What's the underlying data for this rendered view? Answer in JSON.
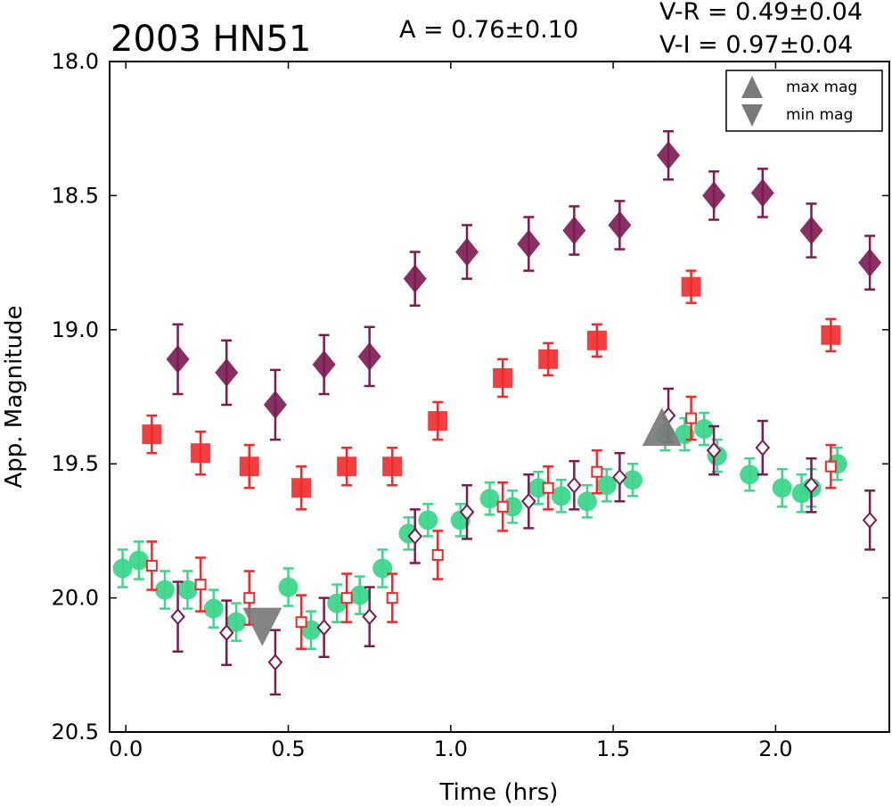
{
  "chart_data": {
    "type": "scatter",
    "title": "2003 HN51",
    "annotations": {
      "amplitude": "A  = 0.76±0.10",
      "v_r": "V-R = 0.49±0.04",
      "v_i": "V-I  = 0.97±0.04"
    },
    "xlabel": "Time (hrs)",
    "ylabel": "App. Magnitude",
    "xlim": [
      -0.05,
      2.35
    ],
    "ylim": [
      20.5,
      18.0
    ],
    "y_inverted": true,
    "x_ticks": [
      "0.0",
      "0.5",
      "1.0",
      "1.5",
      "2.0"
    ],
    "y_ticks": [
      "18.0",
      "18.5",
      "19.0",
      "19.5",
      "20.0",
      "20.5"
    ],
    "legend": {
      "placement": "top-right",
      "entries": [
        "max mag",
        "min mag"
      ]
    },
    "colors": {
      "green": "#3dd68c",
      "red": "#f02a2a",
      "purple": "#7c1a52",
      "marker_gray": "#7a7a7a"
    },
    "series": [
      {
        "marker": "diamond-filled",
        "color": "#7c1a52",
        "x": [
          0.16,
          0.31,
          0.46,
          0.61,
          0.75,
          0.89,
          1.05,
          1.24,
          1.38,
          1.52,
          1.67,
          1.81,
          1.96,
          2.11,
          2.29
        ],
        "y": [
          19.11,
          19.16,
          19.28,
          19.13,
          19.1,
          18.81,
          18.71,
          18.68,
          18.63,
          18.61,
          18.35,
          18.5,
          18.49,
          18.63,
          18.75
        ],
        "err": [
          0.13,
          0.12,
          0.13,
          0.11,
          0.11,
          0.1,
          0.1,
          0.1,
          0.09,
          0.09,
          0.09,
          0.09,
          0.09,
          0.1,
          0.1
        ]
      },
      {
        "marker": "square-filled",
        "color": "#f02a2a",
        "x": [
          0.08,
          0.23,
          0.38,
          0.54,
          0.68,
          0.82,
          0.96,
          1.16,
          1.3,
          1.45,
          1.74,
          2.17
        ],
        "y": [
          19.39,
          19.46,
          19.51,
          19.59,
          19.51,
          19.51,
          19.34,
          19.18,
          19.11,
          19.04,
          18.84,
          19.02
        ],
        "err": [
          0.07,
          0.08,
          0.08,
          0.08,
          0.07,
          0.07,
          0.07,
          0.07,
          0.06,
          0.06,
          0.06,
          0.06
        ]
      },
      {
        "marker": "circle-filled",
        "color": "#3dd68c",
        "x": [
          -0.01,
          0.04,
          0.12,
          0.19,
          0.27,
          0.34,
          0.5,
          0.57,
          0.65,
          0.72,
          0.79,
          0.87,
          0.93,
          1.03,
          1.12,
          1.19,
          1.27,
          1.34,
          1.42,
          1.48,
          1.56,
          1.66,
          1.72,
          1.78,
          1.82,
          1.92,
          2.02,
          2.08,
          2.11,
          2.19
        ],
        "y": [
          19.89,
          19.86,
          19.97,
          19.97,
          20.04,
          20.09,
          19.96,
          20.12,
          20.02,
          19.99,
          19.89,
          19.76,
          19.71,
          19.71,
          19.63,
          19.66,
          19.59,
          19.62,
          19.64,
          19.58,
          19.56,
          19.39,
          19.39,
          19.37,
          19.47,
          19.54,
          19.59,
          19.61,
          19.59,
          19.5
        ],
        "err": [
          0.07,
          0.07,
          0.07,
          0.07,
          0.07,
          0.07,
          0.07,
          0.07,
          0.07,
          0.07,
          0.07,
          0.06,
          0.06,
          0.06,
          0.06,
          0.06,
          0.06,
          0.06,
          0.06,
          0.06,
          0.06,
          0.06,
          0.06,
          0.06,
          0.06,
          0.06,
          0.07,
          0.07,
          0.07,
          0.06
        ]
      },
      {
        "marker": "square-open",
        "color": "#f02a2a",
        "x": [
          0.08,
          0.23,
          0.38,
          0.54,
          0.68,
          0.82,
          0.96,
          1.16,
          1.3,
          1.45,
          1.74,
          2.17
        ],
        "y": [
          19.88,
          19.95,
          20.0,
          20.09,
          20.0,
          20.0,
          19.84,
          19.66,
          19.59,
          19.53,
          19.33,
          19.51
        ],
        "err": [
          0.09,
          0.1,
          0.1,
          0.1,
          0.09,
          0.09,
          0.09,
          0.09,
          0.08,
          0.08,
          0.08,
          0.08
        ]
      },
      {
        "marker": "diamond-open",
        "color": "#7c1a52",
        "x": [
          0.16,
          0.31,
          0.46,
          0.61,
          0.75,
          0.89,
          1.05,
          1.24,
          1.38,
          1.52,
          1.67,
          1.81,
          1.96,
          2.11,
          2.29
        ],
        "y": [
          20.07,
          20.13,
          20.24,
          20.11,
          20.07,
          19.77,
          19.68,
          19.64,
          19.58,
          19.55,
          19.32,
          19.45,
          19.44,
          19.58,
          19.71
        ],
        "err": [
          0.13,
          0.12,
          0.12,
          0.11,
          0.11,
          0.1,
          0.1,
          0.1,
          0.09,
          0.09,
          0.1,
          0.09,
          0.1,
          0.1,
          0.11
        ]
      },
      {
        "marker": "triangle-up",
        "color": "#7a7a7a",
        "label": "max mag",
        "x": [
          1.65
        ],
        "y": [
          19.38
        ],
        "err": [
          0
        ]
      },
      {
        "marker": "triangle-down",
        "color": "#7a7a7a",
        "label": "min mag",
        "x": [
          0.42
        ],
        "y": [
          20.09
        ],
        "err": [
          0
        ]
      }
    ]
  }
}
